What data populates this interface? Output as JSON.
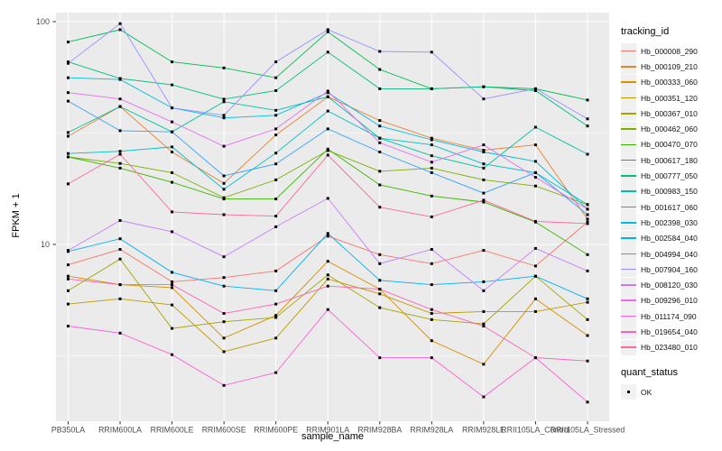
{
  "chart_data": {
    "type": "line",
    "xlabel": "sample_name",
    "ylabel": "FPKM + 1",
    "y_scale": "log10",
    "y_tick_labels": [
      "100",
      "10"
    ],
    "y_tick_values": [
      100,
      10
    ],
    "y_minor_breaks": [
      31.62,
      3.162
    ],
    "ylim": [
      1.75,
      110
    ],
    "grid": "on",
    "legend_position": "right",
    "panel_bg": "#EBEBEB",
    "grid_color": "#FFFFFF",
    "axis_text_color": "#4D4D4D",
    "point_color": "#000000",
    "point_shape": "square",
    "x_categories": [
      "PB350LA",
      "RRIM600LA",
      "RRIM600LE",
      "RRIM600SE",
      "RRIM600PE",
      "RRIM901LA",
      "RRIM928BA",
      "RRIM928LA",
      "RRIM928LE",
      "RRII105LA_Control",
      "RRII105LA_Stressed"
    ],
    "legend": {
      "title": "tracking_id"
    },
    "legend2": {
      "title": "quant_status",
      "items": [
        {
          "label": "OK",
          "marker": "black-square"
        }
      ]
    },
    "series": [
      {
        "name": "Hb_000008_290",
        "color": "#F8766D",
        "values": [
          8.1,
          9.5,
          6.8,
          7.1,
          7.6,
          10.9,
          9.0,
          8.2,
          9.4,
          8.0,
          12.6
        ]
      },
      {
        "name": "Hb_000109_210",
        "color": "#EA8331",
        "values": [
          30.6,
          41.6,
          26.0,
          18.8,
          31.0,
          46.0,
          36.0,
          30.0,
          26.5,
          28.0,
          13.0
        ]
      },
      {
        "name": "Hb_000333_060",
        "color": "#D89000",
        "values": [
          7.2,
          6.6,
          6.4,
          3.8,
          4.8,
          8.4,
          6.3,
          3.7,
          2.9,
          5.7,
          3.9
        ]
      },
      {
        "name": "Hb_000351_120",
        "color": "#C09B00",
        "values": [
          5.4,
          5.7,
          5.35,
          3.3,
          3.8,
          7.0,
          6.0,
          4.9,
          5.0,
          5.0,
          5.5
        ]
      },
      {
        "name": "Hb_000367_010",
        "color": "#A3A500",
        "values": [
          6.2,
          8.6,
          4.2,
          4.5,
          4.7,
          7.3,
          5.2,
          4.6,
          4.4,
          7.2,
          4.6
        ]
      },
      {
        "name": "Hb_000462_060",
        "color": "#7CAE00",
        "values": [
          24.7,
          23.1,
          21.0,
          16.2,
          19.5,
          26.4,
          21.3,
          22.0,
          19.5,
          18.3,
          15.1
        ]
      },
      {
        "name": "Hb_000470_070",
        "color": "#39B600",
        "values": [
          24.7,
          22.0,
          19.0,
          16.0,
          16.0,
          26.8,
          18.5,
          16.5,
          15.5,
          12.6,
          9.0
        ]
      },
      {
        "name": "Hb_000617_180",
        "color": "#00BB4E",
        "values": [
          81,
          92,
          66,
          62,
          56,
          90,
          61,
          50,
          51,
          50,
          44.5
        ]
      },
      {
        "name": "Hb_000777_050",
        "color": "#00BF7D",
        "values": [
          66,
          55.6,
          52,
          44.9,
          49,
          73,
          50,
          50,
          51,
          49,
          34
        ]
      },
      {
        "name": "Hb_000983_150",
        "color": "#00C1A3",
        "values": [
          31.8,
          41.6,
          32,
          43.7,
          40,
          46,
          30,
          25,
          22,
          33.6,
          25.4
        ]
      },
      {
        "name": "Hb_001617_060",
        "color": "#00BFC4",
        "values": [
          25.6,
          26.2,
          27.4,
          17.7,
          25.7,
          39.7,
          30,
          28,
          23,
          21,
          15.1
        ]
      },
      {
        "name": "Hb_002398_030",
        "color": "#00BAE0",
        "values": [
          56,
          55,
          41,
          37,
          38,
          48,
          34,
          29.5,
          26,
          23.6,
          14.4
        ]
      },
      {
        "name": "Hb_002584_040",
        "color": "#00B0F6",
        "values": [
          9.3,
          10.6,
          7.5,
          6.5,
          6.2,
          11.2,
          6.9,
          6.6,
          6.8,
          7.2,
          5.7
        ]
      },
      {
        "name": "Hb_004994_040",
        "color": "#35A2FF",
        "values": [
          44,
          32.4,
          32,
          20.3,
          23,
          33,
          26,
          21,
          17,
          21,
          13.6
        ]
      },
      {
        "name": "Hb_007904_160",
        "color": "#9590FF",
        "values": [
          65,
          98,
          41,
          38,
          66,
          92,
          73.5,
          73,
          45,
          50,
          36.6
        ]
      },
      {
        "name": "Hb_008120_030",
        "color": "#C77CFF",
        "values": [
          9.4,
          12.8,
          11.4,
          8.8,
          12.0,
          16.1,
          8.2,
          9.5,
          6.2,
          9.6,
          7.6
        ]
      },
      {
        "name": "Hb_009296_010",
        "color": "#E76BF3",
        "values": [
          48,
          45,
          35.5,
          27.6,
          33,
          48.8,
          28.6,
          23.4,
          28,
          20,
          14.4
        ]
      },
      {
        "name": "Hb_011174_090",
        "color": "#FA62DB",
        "values": [
          4.3,
          4.0,
          3.2,
          2.33,
          2.66,
          5.1,
          3.1,
          3.1,
          2.07,
          3.1,
          1.96
        ]
      },
      {
        "name": "Hb_019654_040",
        "color": "#FF62BC",
        "values": [
          7.0,
          6.6,
          6.6,
          4.9,
          5.4,
          6.5,
          6.3,
          5.1,
          4.3,
          3.1,
          3.0
        ]
      },
      {
        "name": "Hb_023480_010",
        "color": "#FF6A98",
        "values": [
          18.7,
          25.4,
          14.0,
          13.6,
          13.4,
          25.2,
          14.7,
          13.3,
          15.8,
          12.7,
          12.4
        ]
      }
    ]
  }
}
